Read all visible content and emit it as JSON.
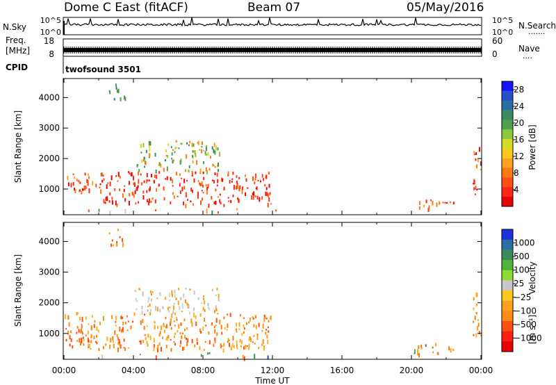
{
  "header": {
    "station": "Dome C East (fitACF)",
    "beam": "Beam 07",
    "date": "05/May/2016"
  },
  "aux_panels": {
    "nsky_label": "N.Sky",
    "nsearch_label": "N.Search",
    "nsearch_marker": ".......",
    "nave_label": "Nave",
    "nave_marker": "....",
    "freq_label": "Freq.",
    "freq_unit": "[MHz]",
    "cpid_label": "CPID",
    "cpid_value": "twofsound 3501",
    "noise_ticks_left": [
      "10^5",
      "10^0"
    ],
    "noise_ticks_right": [
      "10^5",
      "10^0"
    ],
    "freq_ticks": [
      "18",
      "8"
    ],
    "nave_ticks": [
      "60",
      "0"
    ]
  },
  "chart_data": [
    {
      "type": "heatmap",
      "name": "Power",
      "ylabel": "Slant Range [km]",
      "xlabel": "",
      "x_ticks": [
        "00:00",
        "04:00",
        "08:00",
        "12:00",
        "16:00",
        "20:00",
        "00:00"
      ],
      "y_ticks": [
        "1000",
        "2000",
        "3000",
        "4000"
      ],
      "ylim": [
        180,
        4600
      ],
      "xlim_hours": [
        0,
        24
      ],
      "colorbar": {
        "label": "Power [dB]",
        "ticks": [
          "4",
          "8",
          "12",
          "16",
          "20",
          "24",
          "28"
        ],
        "range": [
          0,
          30
        ],
        "colors": [
          "#1414ff",
          "#2a50c8",
          "#2a6ea6",
          "#3c8a64",
          "#50a050",
          "#8cc83c",
          "#d2dc28",
          "#ffc81e",
          "#ffa01e",
          "#ff7814",
          "#ff5014",
          "#ff2814",
          "#e60000"
        ]
      },
      "features": [
        {
          "t0": 0.0,
          "t1": 12.5,
          "r0": 250,
          "r1": 400,
          "level": "weak-mixed"
        },
        {
          "t0": 0.0,
          "t1": 2.0,
          "r0": 900,
          "r1": 1600,
          "level": "orange-red"
        },
        {
          "t0": 2.0,
          "t1": 12.0,
          "r0": 500,
          "r1": 1600,
          "level": "red"
        },
        {
          "t0": 4.0,
          "t1": 9.0,
          "r0": 1600,
          "r1": 2600,
          "level": "green-orange"
        },
        {
          "t0": 2.5,
          "t1": 3.5,
          "r0": 3900,
          "r1": 4500,
          "level": "weak-blue"
        },
        {
          "t0": 20.0,
          "t1": 22.5,
          "r0": 350,
          "r1": 700,
          "level": "orange-red"
        },
        {
          "t0": 23.5,
          "t1": 24.0,
          "r0": 800,
          "r1": 2400,
          "level": "orange-red"
        }
      ]
    },
    {
      "type": "heatmap",
      "name": "Velocity",
      "ylabel": "Slant Range [km]",
      "xlabel": "Time UT",
      "x_ticks": [
        "00:00",
        "04:00",
        "08:00",
        "12:00",
        "16:00",
        "20:00",
        "00:00"
      ],
      "y_ticks": [
        "1000",
        "2000",
        "3000",
        "4000"
      ],
      "ylim": [
        180,
        4600
      ],
      "xlim_hours": [
        0,
        24
      ],
      "colorbar": {
        "label": "Velocity",
        "unit": "[m s⁻¹]",
        "ticks": [
          "1000",
          "500",
          "100",
          "25",
          "−25",
          "−100",
          "−500",
          "−1000"
        ],
        "colors": [
          "#1e32dc",
          "#2a6ea6",
          "#3c8a5a",
          "#50b43c",
          "#8cdc32",
          "#c8c8c8",
          "#ffc81e",
          "#ffa01e",
          "#ff8c14",
          "#ff5014",
          "#ff1e14",
          "#e60000"
        ]
      },
      "features": [
        {
          "t0": 0.0,
          "t1": 12.5,
          "r0": 250,
          "r1": 400,
          "level": "weak-mixed"
        },
        {
          "t0": 0.0,
          "t1": 12.0,
          "r0": 500,
          "r1": 1700,
          "level": "orange"
        },
        {
          "t0": 4.0,
          "t1": 9.0,
          "r0": 1700,
          "r1": 2500,
          "level": "grey-orange"
        },
        {
          "t0": 2.5,
          "t1": 3.5,
          "r0": 3900,
          "r1": 4500,
          "level": "weak-orange"
        },
        {
          "t0": 20.0,
          "t1": 22.5,
          "r0": 350,
          "r1": 700,
          "level": "orange-green"
        },
        {
          "t0": 23.5,
          "t1": 24.0,
          "r0": 800,
          "r1": 2400,
          "level": "orange"
        }
      ]
    }
  ]
}
